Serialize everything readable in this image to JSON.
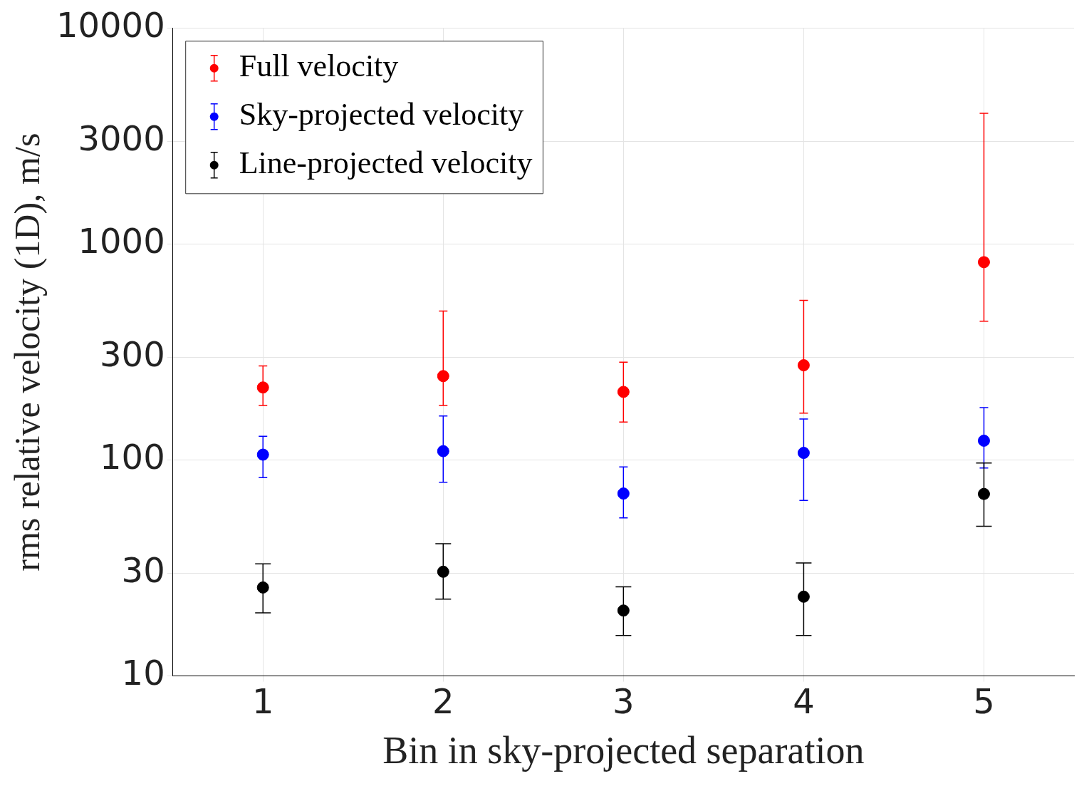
{
  "chart_data": {
    "type": "scatter",
    "xlabel": "Bin in sky-projected separation",
    "ylabel": "rms relative velocity (1D), m/s",
    "xlim": [
      0.5,
      5.5
    ],
    "xticks": [
      1,
      2,
      3,
      4,
      5
    ],
    "ylim": [
      10,
      10000
    ],
    "yticks": [
      10,
      30,
      100,
      300,
      1000,
      3000,
      10000
    ],
    "log": "y",
    "grid": true,
    "legend": "top left",
    "marker": "circle",
    "series": [
      {
        "name": "Full velocity",
        "color": "#ff0000",
        "x": [
          1,
          2,
          3,
          4,
          5
        ],
        "values": [
          217,
          245,
          207,
          275,
          826
        ],
        "errors": [
          [
            179,
            273
          ],
          [
            179,
            490
          ],
          [
            150,
            284
          ],
          [
            165,
            550
          ],
          [
            440,
            4040
          ]
        ]
      },
      {
        "name": "Sky-projected velocity",
        "color": "#0000ff",
        "x": [
          1,
          2,
          3,
          4,
          5
        ],
        "values": [
          106,
          110,
          70,
          108,
          123
        ],
        "errors": [
          [
            83,
            129
          ],
          [
            79,
            160
          ],
          [
            54,
            93
          ],
          [
            65,
            155
          ],
          [
            92,
            175
          ]
        ]
      },
      {
        "name": "Line-projected velocity",
        "color": "#000000",
        "x": [
          1,
          2,
          3,
          4,
          5
        ],
        "values": [
          25.7,
          30.4,
          20.1,
          23.3,
          69.7
        ],
        "errors": [
          [
            19.6,
            33.1
          ],
          [
            22.7,
            41
          ],
          [
            15.4,
            25.9
          ],
          [
            15.4,
            33.4
          ],
          [
            49.4,
            97
          ]
        ]
      }
    ]
  }
}
